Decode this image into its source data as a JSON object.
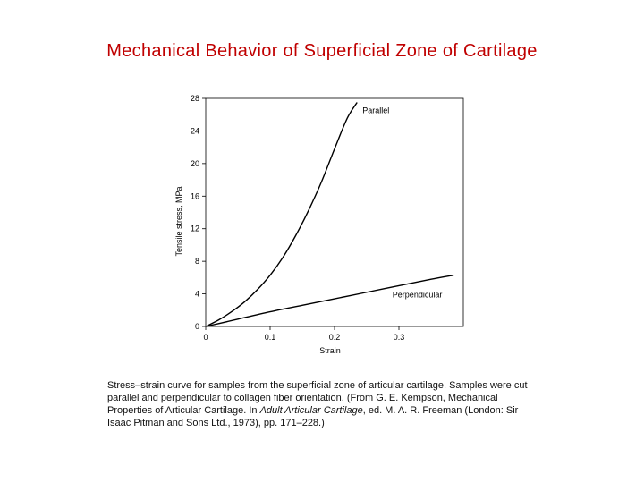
{
  "slide": {
    "title": "Mechanical Behavior of Superficial Zone of Cartilage"
  },
  "chart_data": {
    "type": "line",
    "xlabel": "Strain",
    "ylabel": "Tensile stress, MPa",
    "xlim": [
      0,
      0.4
    ],
    "ylim": [
      0,
      28
    ],
    "x_ticks": [
      0,
      0.1,
      0.2,
      0.3
    ],
    "x_tick_labels": [
      "0",
      "0.1",
      "0.2",
      "0.3"
    ],
    "y_ticks": [
      0,
      4,
      8,
      12,
      16,
      20,
      24,
      28
    ],
    "y_tick_labels": [
      "0",
      "4",
      "8",
      "12",
      "16",
      "20",
      "24",
      "28"
    ],
    "grid": false,
    "series": [
      {
        "name": "Parallel",
        "color": "#000000",
        "x": [
          0,
          0.02,
          0.04,
          0.06,
          0.08,
          0.1,
          0.12,
          0.14,
          0.16,
          0.18,
          0.2,
          0.22,
          0.235
        ],
        "y": [
          0,
          0.8,
          1.8,
          3.0,
          4.5,
          6.3,
          8.5,
          11.2,
          14.3,
          17.8,
          21.8,
          25.6,
          27.5
        ]
      },
      {
        "name": "Perpendicular",
        "color": "#000000",
        "x": [
          0,
          0.02,
          0.05,
          0.1,
          0.15,
          0.2,
          0.25,
          0.3,
          0.35,
          0.385
        ],
        "y": [
          0,
          0.35,
          0.9,
          1.8,
          2.6,
          3.4,
          4.2,
          5.0,
          5.8,
          6.3
        ]
      }
    ]
  },
  "caption": {
    "part1": "Stress–strain curve for samples from the superficial zone of articular cartilage. Samples were cut parallel and perpendicular to collagen fiber orientation. (From G. E. Kempson, Mechanical Properties of Articular Cartilage. In ",
    "italic": "Adult Articular Cartilage",
    "part2": ", ed. M. A. R. Freeman (London: Sir Isaac Pitman and Sons Ltd., 1973), pp. 171–228.)"
  }
}
